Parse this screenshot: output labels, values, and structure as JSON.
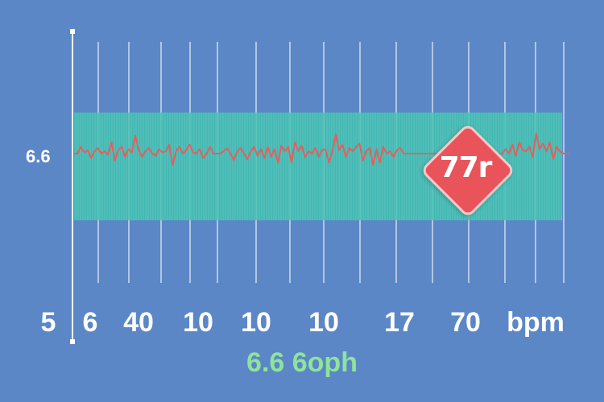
{
  "chart_data": {
    "type": "line",
    "title": "",
    "ylabel": "6.6",
    "xlabel": "6.6 6oph",
    "x_tick_labels": [
      "5",
      "6",
      "40",
      "10",
      "10",
      "10",
      "17",
      "70",
      "bpm"
    ],
    "series": [
      {
        "values": [
          0,
          0,
          0.6,
          0.1,
          0.3,
          -0.4,
          0.2,
          0.5,
          0,
          0.2,
          -0.1,
          1.0,
          -0.6,
          0.3,
          0.6,
          -0.3,
          0.4,
          0.1,
          1.6,
          0.3,
          -0.3,
          0.2,
          0.5,
          0,
          -0.2,
          0.4,
          0.1,
          0.2,
          0.8,
          -1.0,
          0.2,
          0.6,
          0,
          0.3,
          0.8,
          0.1,
          0,
          0.4,
          -0.4,
          0,
          0.6,
          0,
          0,
          0,
          0.2,
          0.5,
          0,
          -0.6,
          0.2,
          0.5,
          0,
          -0.5,
          0.2,
          0.6,
          -0.2,
          0.4,
          -0.4,
          0.6,
          -0.3,
          0.4,
          -0.8,
          0.7,
          0.2,
          0.6,
          -0.8,
          1.0,
          0.2,
          0.7,
          -0.3,
          0.2,
          0,
          0.5,
          -0.3,
          0.3,
          0.4,
          -0.8,
          0.2,
          1.7,
          0.3,
          0.8,
          -0.3,
          0.5,
          0.2,
          0.6,
          0.9,
          -0.6,
          0.2,
          0.5,
          -1.0,
          0.4,
          -0.8,
          0.6,
          0,
          0.2,
          -0.3,
          0.3,
          0.5,
          0,
          0,
          0,
          0,
          0,
          0,
          0,
          0,
          0,
          0,
          0,
          0,
          0,
          0,
          0,
          0,
          0,
          0,
          0,
          0,
          0,
          0,
          0,
          0,
          0,
          0,
          0,
          0,
          0,
          0,
          0.4,
          0,
          0.8,
          -0.2,
          1.0,
          0.3,
          0.2,
          0.6,
          -0.3,
          1.8,
          0.4,
          0.9,
          0.2,
          1.0,
          -0.5,
          0.6,
          0.2,
          0,
          0,
          0
        ]
      }
    ],
    "band_color": "#3fbfae",
    "line_color": "#e0605e",
    "background_color": "#5b87c7",
    "grid": true
  },
  "badge": {
    "label": "77r",
    "color": "#e8545a"
  }
}
